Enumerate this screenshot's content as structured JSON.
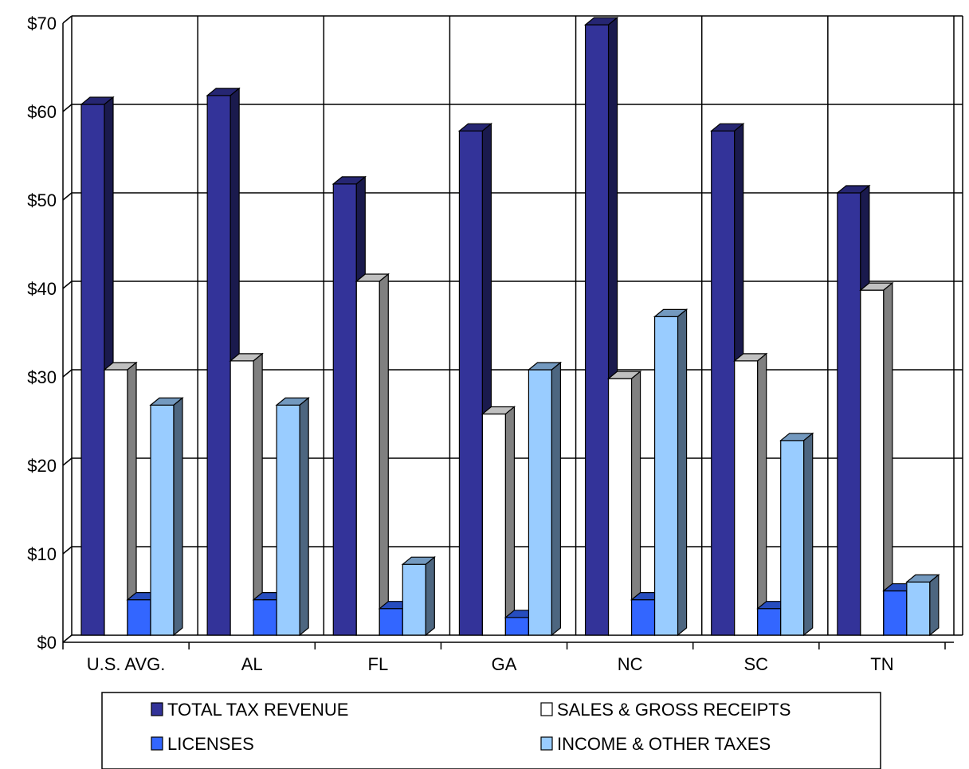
{
  "chart_data": {
    "type": "bar",
    "categories": [
      "U.S. AVG.",
      "AL",
      "FL",
      "GA",
      "NC",
      "SC",
      "TN"
    ],
    "series": [
      {
        "name": "TOTAL TAX REVENUE",
        "values": [
          60,
          61,
          51,
          57,
          69,
          57,
          50
        ],
        "color": "#333399"
      },
      {
        "name": "SALES & GROSS RECEIPTS",
        "values": [
          30,
          31,
          40,
          25,
          29,
          31,
          39
        ],
        "color": "#ffffff"
      },
      {
        "name": "LICENSES",
        "values": [
          4,
          4,
          3,
          2,
          4,
          3,
          5
        ],
        "color": "#3366ff"
      },
      {
        "name": "INCOME & OTHER TAXES",
        "values": [
          26,
          26,
          8,
          30,
          36,
          22,
          6
        ],
        "color": "#99ccff"
      }
    ],
    "title": "",
    "xlabel": "",
    "ylabel": "",
    "ylim": [
      0,
      70
    ],
    "ytick_step": 10,
    "ytick_labels": [
      "$0",
      "$10",
      "$20",
      "$30",
      "$40",
      "$50",
      "$60",
      "$70"
    ],
    "grid": true,
    "three_d": true,
    "legend_position": "bottom"
  }
}
